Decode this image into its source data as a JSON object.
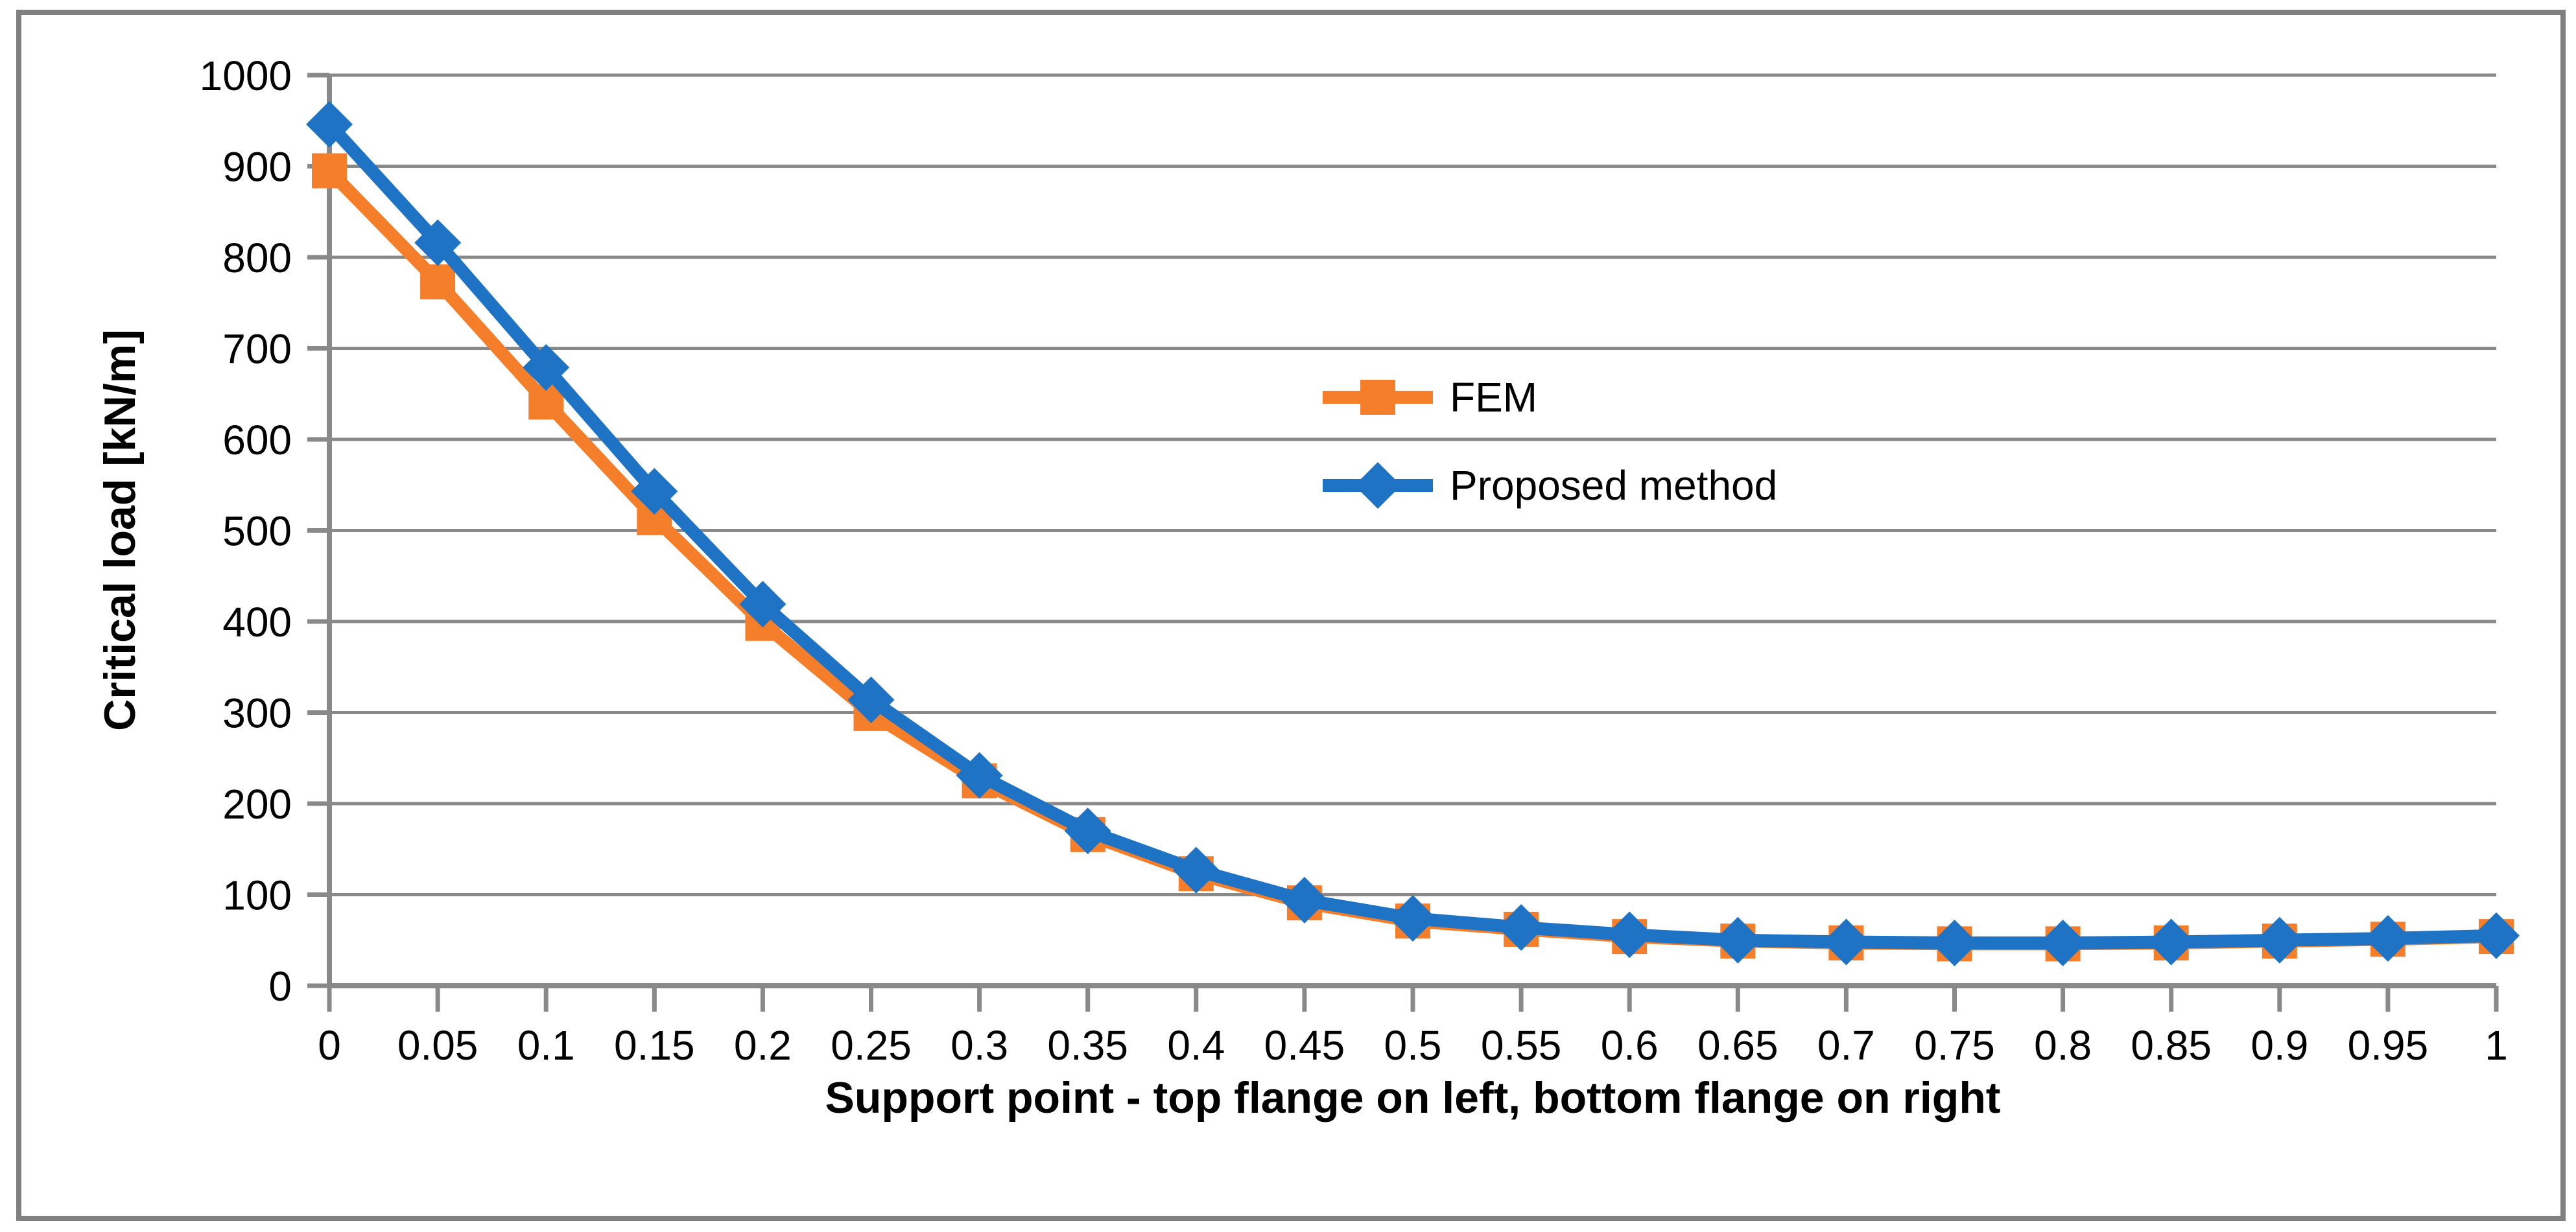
{
  "colors": {
    "background": "#FFFFFF",
    "frame_border": "#808080",
    "gridline": "#898989",
    "axis": "#898989",
    "text": "#000000",
    "fem_orange": "#F57E2B",
    "proposed_blue": "#1E73C4"
  },
  "chart_data": {
    "type": "line",
    "title": "",
    "xlabel": "Support point - top flange on left, bottom flange on right",
    "ylabel": "Critical load [kN/m]",
    "x": [
      0,
      0.05,
      0.1,
      0.15,
      0.2,
      0.25,
      0.3,
      0.35,
      0.4,
      0.45,
      0.5,
      0.55,
      0.6,
      0.65,
      0.7,
      0.75,
      0.8,
      0.85,
      0.9,
      0.95,
      1
    ],
    "x_labels": [
      "0",
      "0.05",
      "0.1",
      "0.15",
      "0.2",
      "0.25",
      "0.3",
      "0.35",
      "0.4",
      "0.45",
      "0.5",
      "0.55",
      "0.6",
      "0.65",
      "0.7",
      "0.75",
      "0.8",
      "0.85",
      "0.9",
      "0.95",
      "1"
    ],
    "y_ticks": [
      0,
      100,
      200,
      300,
      400,
      500,
      600,
      700,
      800,
      900,
      1000
    ],
    "y_tick_labels": [
      "0",
      "100",
      "200",
      "300",
      "400",
      "500",
      "600",
      "700",
      "800",
      "900",
      "1000"
    ],
    "ylim": [
      0,
      1000
    ],
    "grid": "horizontal-major",
    "legend_position": "inside-center-right",
    "series": [
      {
        "name": "FEM",
        "color": "#F57E2B",
        "marker": "square",
        "values": [
          895,
          773,
          641,
          514,
          398,
          299,
          225,
          166,
          123,
          91,
          71,
          62,
          54,
          49,
          47,
          46,
          46,
          47,
          49,
          51,
          54
        ]
      },
      {
        "name": "Proposed method",
        "color": "#1E73C4",
        "marker": "diamond",
        "values": [
          946,
          816,
          679,
          543,
          419,
          314,
          231,
          170,
          127,
          94,
          74,
          64,
          56,
          50,
          48,
          47,
          47,
          48,
          50,
          52,
          55
        ]
      }
    ]
  }
}
